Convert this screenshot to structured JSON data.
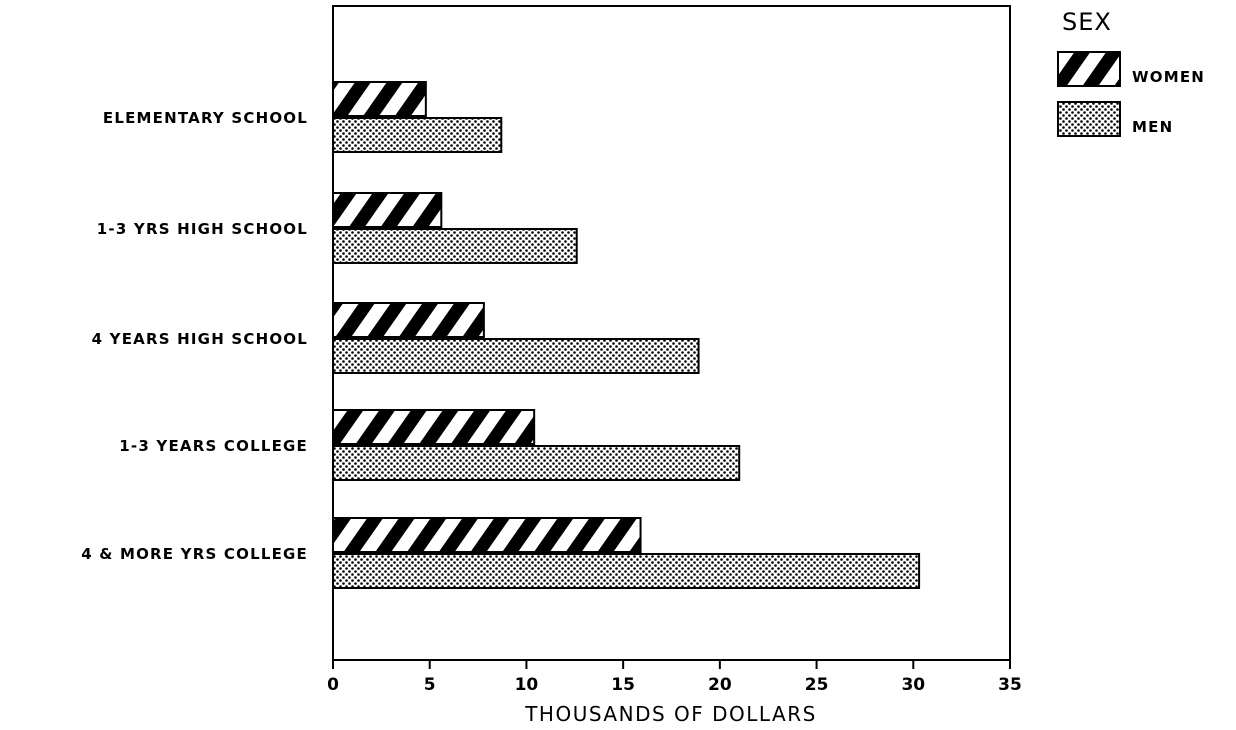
{
  "chart_data": {
    "type": "bar",
    "orientation": "horizontal",
    "categories": [
      "ELEMENTARY SCHOOL",
      "1-3 YRS HIGH SCHOOL",
      "4 YEARS HIGH SCHOOL",
      "1-3 YEARS COLLEGE",
      "4 & MORE YRS COLLEGE"
    ],
    "series": [
      {
        "name": "WOMEN",
        "pattern": "diagonal-hatch",
        "values": [
          4.8,
          5.6,
          7.8,
          10.4,
          15.9
        ]
      },
      {
        "name": "MEN",
        "pattern": "dot-stipple",
        "values": [
          8.7,
          12.6,
          18.9,
          21.0,
          30.3
        ]
      }
    ],
    "xlabel": "THOUSANDS OF DOLLARS",
    "ylabel": "",
    "xlim": [
      0,
      35
    ],
    "xticks": [
      0,
      5,
      10,
      15,
      20,
      25,
      30,
      35
    ],
    "legend": {
      "title": "SEX",
      "position": "right"
    },
    "grid": false,
    "colors": {
      "ink": "#000000",
      "background": "#ffffff"
    }
  }
}
